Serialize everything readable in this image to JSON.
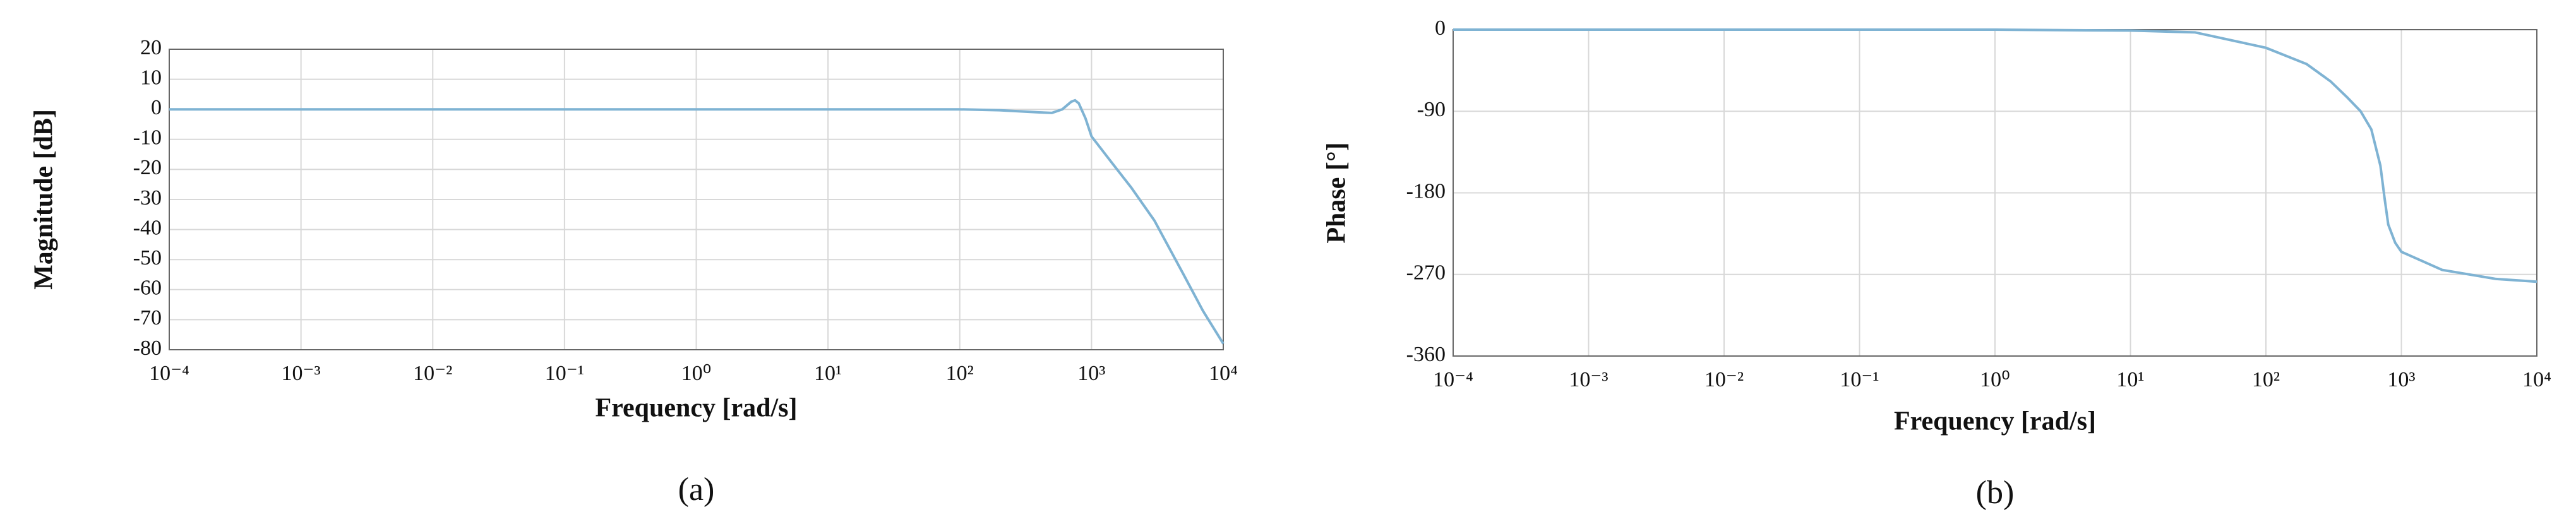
{
  "chart_data": [
    {
      "type": "line",
      "caption": "(a)",
      "xlabel": "Frequency [rad/s]",
      "ylabel": "Magnitude [dB]",
      "xscale": "log",
      "grid": true,
      "xlim": [
        0.0001,
        10000
      ],
      "xticks": [
        {
          "value": 0.0001,
          "label": "10⁻⁴"
        },
        {
          "value": 0.001,
          "label": "10⁻³"
        },
        {
          "value": 0.01,
          "label": "10⁻²"
        },
        {
          "value": 0.1,
          "label": "10⁻¹"
        },
        {
          "value": 1,
          "label": "10⁰"
        },
        {
          "value": 10,
          "label": "10¹"
        },
        {
          "value": 100,
          "label": "10²"
        },
        {
          "value": 1000,
          "label": "10³"
        },
        {
          "value": 10000,
          "label": "10⁴"
        }
      ],
      "ylim": [
        -80,
        20
      ],
      "yticks": [
        20,
        10,
        0,
        -10,
        -20,
        -30,
        -40,
        -50,
        -60,
        -70,
        -80
      ],
      "x": [
        0.0001,
        0.001,
        0.01,
        0.1,
        1,
        10,
        100,
        200,
        400,
        500,
        600,
        700,
        750,
        800,
        900,
        1000,
        1500,
        2000,
        3000,
        5000,
        7000,
        10000
      ],
      "series": [
        {
          "color": "#7fb3d3",
          "values": [
            0,
            0,
            0,
            0,
            0,
            0,
            0,
            -0.3,
            -1,
            -1.2,
            0,
            2.5,
            3,
            2,
            -3,
            -9,
            -19,
            -26,
            -37,
            -55,
            -67,
            -78
          ]
        }
      ]
    },
    {
      "type": "line",
      "caption": "(b)",
      "xlabel": "Frequency [rad/s]",
      "ylabel": "Phase [°]",
      "xscale": "log",
      "grid": true,
      "xlim": [
        0.0001,
        10000
      ],
      "xticks": [
        {
          "value": 0.0001,
          "label": "10⁻⁴"
        },
        {
          "value": 0.001,
          "label": "10⁻³"
        },
        {
          "value": 0.01,
          "label": "10⁻²"
        },
        {
          "value": 0.1,
          "label": "10⁻¹"
        },
        {
          "value": 1,
          "label": "10⁰"
        },
        {
          "value": 10,
          "label": "10¹"
        },
        {
          "value": 100,
          "label": "10²"
        },
        {
          "value": 1000,
          "label": "10³"
        },
        {
          "value": 10000,
          "label": "10⁴"
        }
      ],
      "ylim": [
        -360,
        0
      ],
      "yticks": [
        0,
        -90,
        -180,
        -270,
        -360
      ],
      "x": [
        0.0001,
        0.001,
        0.01,
        0.1,
        1,
        10,
        30,
        100,
        200,
        300,
        400,
        500,
        600,
        700,
        750,
        800,
        900,
        1000,
        2000,
        5000,
        10000
      ],
      "series": [
        {
          "color": "#7fb3d3",
          "values": [
            0,
            0,
            0,
            0,
            0,
            -1,
            -3,
            -20,
            -38,
            -57,
            -75,
            -90,
            -110,
            -150,
            -185,
            -215,
            -235,
            -245,
            -265,
            -275,
            -278
          ]
        }
      ]
    }
  ]
}
